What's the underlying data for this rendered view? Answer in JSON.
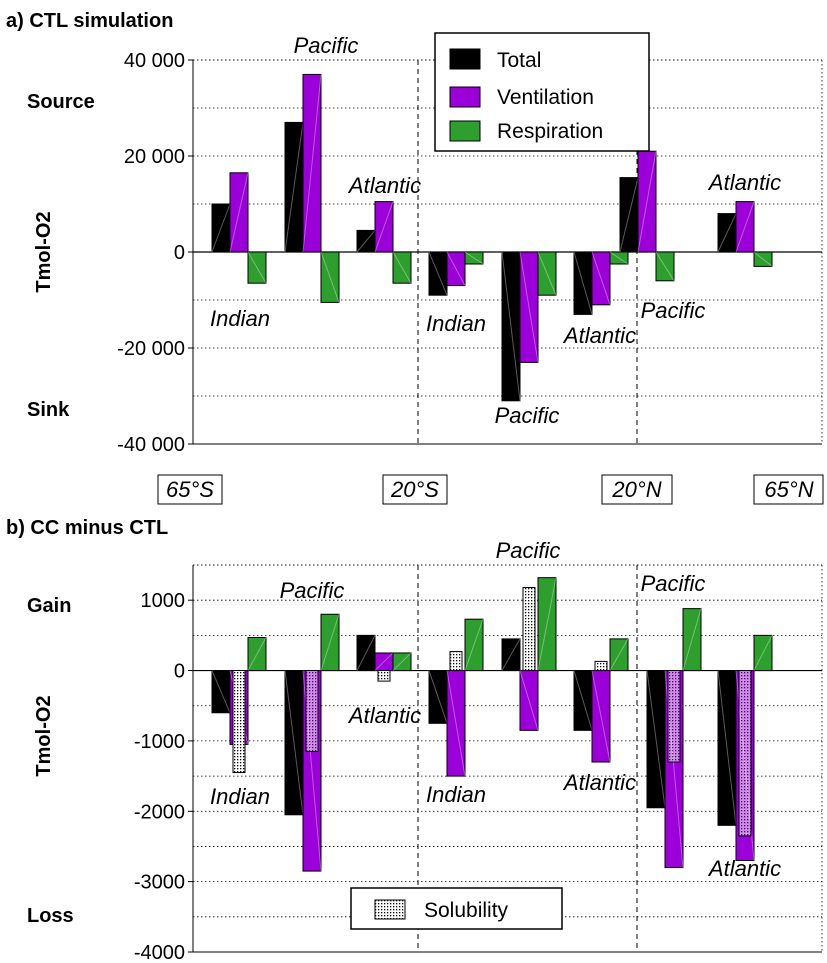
{
  "chart_data": [
    {
      "type": "bar",
      "title": "a) CTL simulation",
      "ylabel": "Tmol-O2",
      "ylim": [
        -40000,
        40000
      ],
      "yticks": [
        "40 000",
        "20 000",
        "0",
        "-20 000",
        "-40 000"
      ],
      "ytick_values": [
        40000,
        20000,
        0,
        -20000,
        -40000
      ],
      "side_labels": {
        "top": "Source",
        "bottom": "Sink"
      },
      "grid": true,
      "legend_position": "top-center",
      "series": [
        {
          "name": "Total",
          "color": "#000000",
          "values": [
            10000,
            27000,
            4500,
            -9000,
            -31000,
            -13000,
            15500,
            8000
          ]
        },
        {
          "name": "Ventilation",
          "color": "#9b00d9",
          "values": [
            16500,
            37000,
            10500,
            -7000,
            -23000,
            -11000,
            21000,
            10500
          ]
        },
        {
          "name": "Respiration",
          "color": "#2e9e2e",
          "values": [
            -6500,
            -10500,
            -6500,
            -2500,
            -9000,
            -2500,
            -6000,
            -3000
          ]
        }
      ],
      "group_labels": [
        "Indian",
        "Pacific",
        "Atlantic",
        "Indian",
        "Pacific",
        "Atlantic",
        "Pacific",
        "Atlantic"
      ]
    },
    {
      "type": "bar",
      "title": "b) CC minus CTL",
      "ylabel": "Tmol-O2",
      "ylim": [
        -4000,
        1500
      ],
      "yticks": [
        "1000",
        "0",
        "-1000",
        "-2000",
        "-3000",
        "-4000"
      ],
      "ytick_values": [
        1000,
        0,
        -1000,
        -2000,
        -3000,
        -4000
      ],
      "side_labels": {
        "top": "Gain",
        "bottom": "Loss"
      },
      "grid": true,
      "legend_position": "bottom-center",
      "series": [
        {
          "name": "Total",
          "color": "#000000",
          "values": [
            -600,
            -2050,
            500,
            -750,
            450,
            -850,
            -1950,
            -2200
          ]
        },
        {
          "name": "Ventilation",
          "color": "#9b00d9",
          "values": [
            -1050,
            -2850,
            250,
            -1500,
            -850,
            -1300,
            -2800,
            -2700
          ]
        },
        {
          "name": "Respiration",
          "color": "#2e9e2e",
          "values": [
            470,
            800,
            250,
            730,
            1320,
            450,
            880,
            500
          ]
        },
        {
          "name": "Solubility",
          "color": "#ffffff",
          "values": [
            -1450,
            -1150,
            -150,
            270,
            1180,
            130,
            -1300,
            -2350
          ]
        }
      ],
      "group_labels": [
        "Indian",
        "Pacific",
        "Atlantic",
        "Indian",
        "Pacific",
        "Atlantic",
        "Pacific",
        "Atlantic"
      ]
    }
  ],
  "latitude_labels": [
    "65°S",
    "20°S",
    "20°N",
    "65°N"
  ]
}
